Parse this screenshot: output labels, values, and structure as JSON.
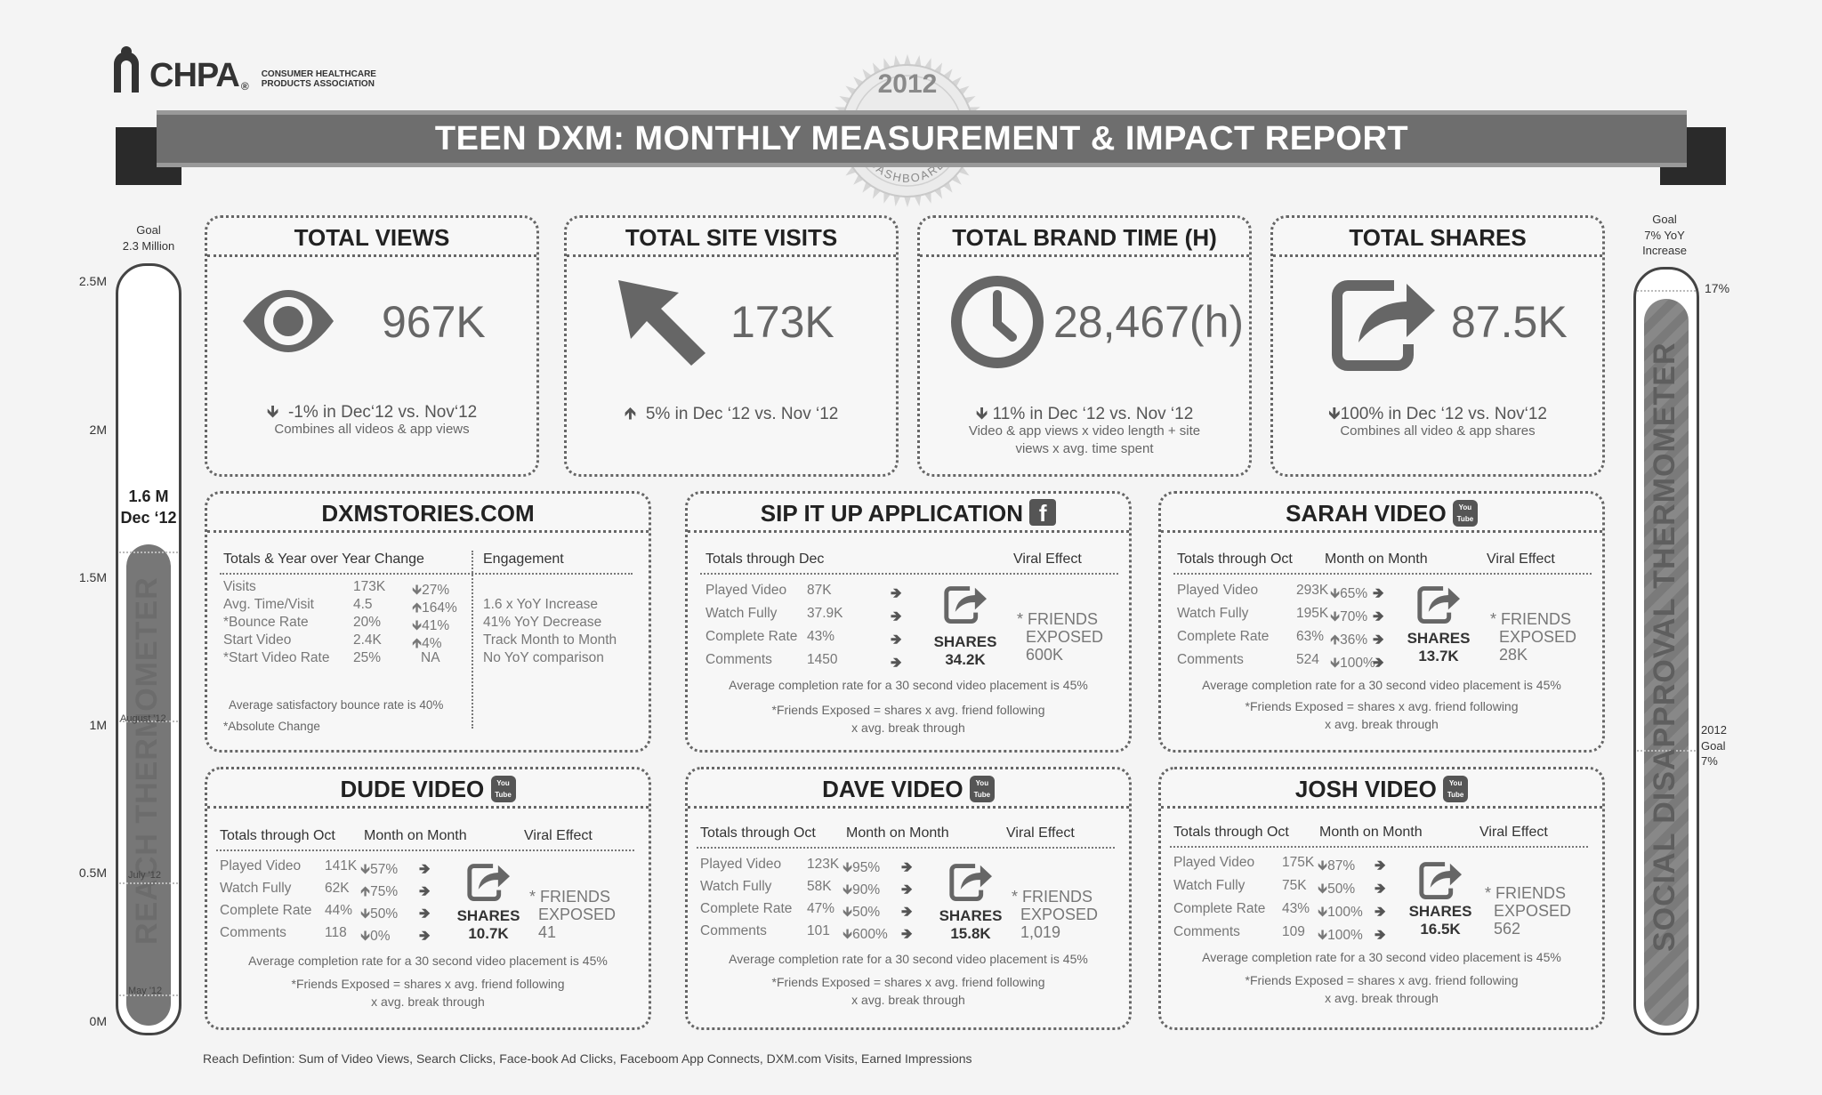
{
  "logo": {
    "word": "CHPA",
    "reg": "®",
    "sub_line1": "CONSUMER HEALTHCARE",
    "sub_line2": "PRODUCTS ASSOCIATION"
  },
  "seal": {
    "year": "2012",
    "label": "DASHBOARD"
  },
  "banner": {
    "title": "TEEN DXM: MONTHLY MEASUREMENT & IMPACT REPORT"
  },
  "reach_thermometer": {
    "goal_line1": "Goal",
    "goal_line2": "2.3 Million",
    "current_line1": "1.6 M",
    "current_line2": "Dec ‘12",
    "vertical_label": "REACH THERMOMETER",
    "axis": [
      "2.5M",
      "2M",
      "1.5M",
      "1M",
      "0.5M",
      "0M"
    ],
    "marks": [
      "August '12",
      "July '12",
      "May '12"
    ],
    "fill_fraction": 0.64,
    "color_fill": "#777777"
  },
  "social_thermometer": {
    "goal_line1": "Goal",
    "goal_line2": "7% YoY",
    "goal_line3": "Increase",
    "top_label": "17%",
    "goal_label_line1": "2012",
    "goal_label_line2": "Goal",
    "goal_label_line3": "7%",
    "vertical_label": "SOCIAL DISAPPROVAL THERMOMETER",
    "fill_fraction": 0.97
  },
  "total_views": {
    "title": "TOTAL VIEWS",
    "icon": "eye-icon",
    "value": "967K",
    "change": "-1% in Dec‘12 vs. Nov‘12",
    "sub": "Combines all videos & app views"
  },
  "total_site_visits": {
    "title": "TOTAL SITE VISITS",
    "icon": "cursor-arrow-icon",
    "value": "173K",
    "change": "5% in Dec ‘12 vs. Nov ‘12"
  },
  "total_brand_time": {
    "title": "TOTAL BRAND TIME (H)",
    "icon": "clock-icon",
    "value": "28,467(h)",
    "change": "11% in Dec ‘12 vs. Nov ‘12",
    "sub1": "Video & app views x video length + site",
    "sub2": "views x avg. time spent"
  },
  "total_shares": {
    "title": "TOTAL SHARES",
    "icon": "share-icon",
    "value": "87.5K",
    "change": "100% in Dec ‘12 vs.  Nov‘12",
    "sub": "Combines all video & app shares"
  },
  "dxmstories": {
    "title": "DXMSTORIES.COM",
    "head_left": "Totals & Year over Year Change",
    "head_right": "Engagement",
    "rows": [
      {
        "label": "Visits",
        "value": "173K",
        "change": "27%",
        "dir": "down",
        "engagement": ""
      },
      {
        "label": "Avg. Time/Visit",
        "value": "4.5",
        "change": "164%",
        "dir": "up",
        "engagement": "1.6 x YoY Increase"
      },
      {
        "label": "*Bounce Rate",
        "value": "20%",
        "change": "41%",
        "dir": "down",
        "engagement": "41% YoY Decrease"
      },
      {
        "label": "Start Video",
        "value": "2.4K",
        "change": "4%",
        "dir": "up",
        "engagement": "Track Month to Month"
      },
      {
        "label": "*Start Video Rate",
        "value": "25%",
        "change": "NA",
        "dir": "none",
        "engagement": "No YoY comparison"
      }
    ],
    "note1": "Average satisfactory bounce rate is 40%",
    "note2": "*Absolute Change"
  },
  "sipitup": {
    "title": "SIP IT UP APPLICATION",
    "head_left": "Totals through Dec",
    "head_right": "Viral Effect",
    "rows": [
      {
        "label": "Played Video",
        "value": "87K"
      },
      {
        "label": "Watch Fully",
        "value": "37.9K"
      },
      {
        "label": "Complete Rate",
        "value": "43%"
      },
      {
        "label": "Comments",
        "value": "1450"
      }
    ],
    "shares_label": "SHARES",
    "shares_value": "34.2K",
    "friends1": "* FRIENDS",
    "friends2": "EXPOSED",
    "friends_value": "600K",
    "note1": "Average completion rate for a 30 second video placement is 45%",
    "note2": "*Friends Exposed = shares x avg. friend following",
    "note3": "x avg. break through"
  },
  "sarah": {
    "title": "SARAH VIDEO",
    "head_left": "Totals through Oct",
    "head_mid": "Month on Month",
    "head_right": "Viral Effect",
    "rows": [
      {
        "label": "Played Video",
        "value": "293K",
        "change": "65%",
        "dir": "down"
      },
      {
        "label": "Watch Fully",
        "value": "195K",
        "change": "70%",
        "dir": "down"
      },
      {
        "label": "Complete Rate",
        "value": "63%",
        "change": "36%",
        "dir": "up"
      },
      {
        "label": "Comments",
        "value": "524",
        "change": "100%",
        "dir": "down"
      }
    ],
    "shares_label": "SHARES",
    "shares_value": "13.7K",
    "friends1": "* FRIENDS",
    "friends2": "EXPOSED",
    "friends_value": "28K",
    "note1": "Average completion rate for a 30 second video placement is 45%",
    "note2": "*Friends Exposed = shares x avg. friend following",
    "note3": "x avg. break through"
  },
  "dude": {
    "title": "DUDE VIDEO",
    "head_left": "Totals through Oct",
    "head_mid": "Month on Month",
    "head_right": "Viral Effect",
    "rows": [
      {
        "label": "Played Video",
        "value": "141K",
        "change": "57%",
        "dir": "down"
      },
      {
        "label": "Watch Fully",
        "value": "62K",
        "change": "75%",
        "dir": "up"
      },
      {
        "label": "Complete Rate",
        "value": "44%",
        "change": "50%",
        "dir": "down"
      },
      {
        "label": "Comments",
        "value": "118",
        "change": "0%",
        "dir": "down"
      }
    ],
    "shares_label": "SHARES",
    "shares_value": "10.7K",
    "friends1": "* FRIENDS",
    "friends2": "EXPOSED",
    "friends_value": "41",
    "note1": "Average completion rate for a 30 second video placement is 45%",
    "note2": "*Friends Exposed = shares x avg. friend following",
    "note3": "x avg. break through"
  },
  "dave": {
    "title": "DAVE VIDEO",
    "head_left": "Totals through Oct",
    "head_mid": "Month on Month",
    "head_right": "Viral Effect",
    "rows": [
      {
        "label": "Played Video",
        "value": "123K",
        "change": "95%",
        "dir": "down"
      },
      {
        "label": "Watch Fully",
        "value": "58K",
        "change": "90%",
        "dir": "down"
      },
      {
        "label": "Complete Rate",
        "value": "47%",
        "change": "50%",
        "dir": "down"
      },
      {
        "label": "Comments",
        "value": "101",
        "change": "600%",
        "dir": "down"
      }
    ],
    "shares_label": "SHARES",
    "shares_value": "15.8K",
    "friends1": "* FRIENDS",
    "friends2": "EXPOSED",
    "friends_value": "1,019",
    "note1": "Average completion rate for a 30 second video placement is 45%",
    "note2": "*Friends Exposed = shares x avg. friend following",
    "note3": "x avg. break through"
  },
  "josh": {
    "title": "JOSH VIDEO",
    "head_left": "Totals through Oct",
    "head_mid": "Month on Month",
    "head_right": "Viral Effect",
    "rows": [
      {
        "label": "Played Video",
        "value": "175K",
        "change": "87%",
        "dir": "down"
      },
      {
        "label": "Watch Fully",
        "value": "75K",
        "change": "50%",
        "dir": "down"
      },
      {
        "label": "Complete Rate",
        "value": "43%",
        "change": "100%",
        "dir": "down"
      },
      {
        "label": "Comments",
        "value": "109",
        "change": "100%",
        "dir": "down"
      }
    ],
    "shares_label": "SHARES",
    "shares_value": "16.5K",
    "friends1": "* FRIENDS",
    "friends2": "EXPOSED",
    "friends_value": "562",
    "note1": "Average completion rate for a 30 second video placement is 45%",
    "note2": "*Friends Exposed = shares x avg. friend following",
    "note3": "x avg. break through"
  },
  "youtube_icon": {
    "line1": "You",
    "line2": "Tube"
  },
  "facebook_icon": {
    "glyph": "f"
  },
  "footer": "Reach Defintion: Sum of Video Views, Search Clicks, Face-book Ad Clicks, Faceboom App Connects, DXM.com Visits,  Earned Impressions"
}
